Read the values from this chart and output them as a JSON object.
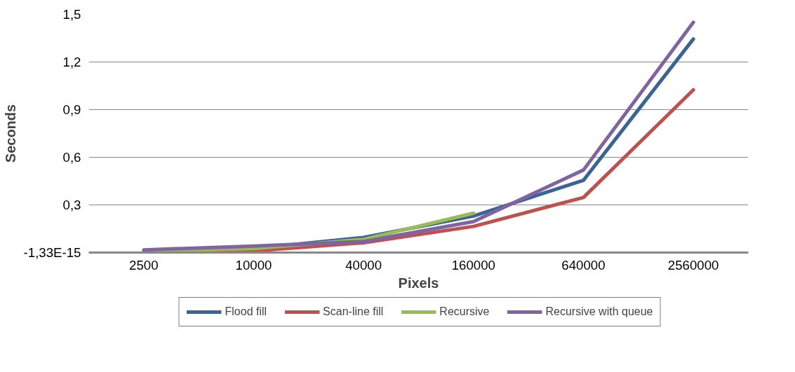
{
  "chart_data": {
    "type": "line",
    "xlabel": "Pixels",
    "ylabel": "Seconds",
    "categories": [
      "2500",
      "10000",
      "40000",
      "160000",
      "640000",
      "2560000"
    ],
    "series": [
      {
        "name": "Flood fill",
        "color": "#386595",
        "values": [
          0.005,
          0.025,
          0.095,
          0.23,
          0.455,
          1.345
        ]
      },
      {
        "name": "Scan-line fill",
        "color": "#c0504d",
        "values": [
          0,
          0.01,
          0.062,
          0.165,
          0.347,
          1.025
        ]
      },
      {
        "name": "Recursive",
        "color": "#9bbb59",
        "values": [
          0.008,
          0.025,
          0.083,
          0.248,
          null,
          null
        ]
      },
      {
        "name": "Recursive with queue",
        "color": "#8064a2",
        "values": [
          0.017,
          0.041,
          0.07,
          0.195,
          0.52,
          1.45
        ]
      }
    ],
    "ylim": [
      0,
      1.5
    ],
    "yticks": [
      {
        "value": 0,
        "label": "-1,33E-15"
      },
      {
        "value": 0.3,
        "label": "0,3"
      },
      {
        "value": 0.6,
        "label": "0,6"
      },
      {
        "value": 0.9,
        "label": "0,9"
      },
      {
        "value": 1.2,
        "label": "1,2"
      },
      {
        "value": 1.5,
        "label": "1,5"
      }
    ],
    "grid": "y",
    "legend": "bottom",
    "line_style": "solid",
    "marker": "none"
  }
}
